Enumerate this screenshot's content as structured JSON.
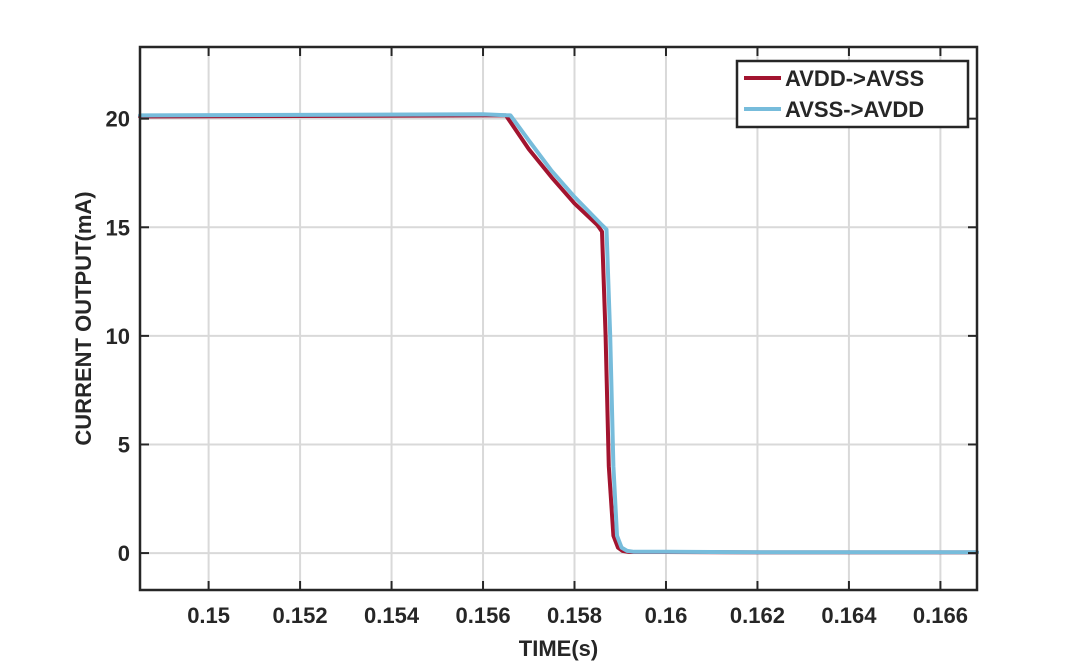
{
  "chart_data": {
    "type": "line",
    "title": "",
    "xlabel": "TIME(s)",
    "ylabel": "CURRENT OUTPUT(mA)",
    "xlim": [
      0.1485,
      0.1668
    ],
    "ylim": [
      -1.7,
      23.3
    ],
    "xticks": [
      0.15,
      0.152,
      0.154,
      0.156,
      0.158,
      0.16,
      0.162,
      0.164,
      0.166
    ],
    "xtick_labels": [
      "0.15",
      "0.152",
      "0.154",
      "0.156",
      "0.158",
      "0.16",
      "0.162",
      "0.164",
      "0.166"
    ],
    "yticks": [
      0,
      5,
      10,
      15,
      20
    ],
    "ytick_labels": [
      "0",
      "5",
      "10",
      "15",
      "20"
    ],
    "grid": true,
    "legend_position": "top-right",
    "series": [
      {
        "name": "AVDD->AVSS",
        "color": "#A2142F",
        "x": [
          0.1485,
          0.156,
          0.1565,
          0.157,
          0.1575,
          0.158,
          0.1585,
          0.1586,
          0.15868,
          0.15875,
          0.15885,
          0.15895,
          0.15905,
          0.1592,
          0.16,
          0.162,
          0.1668
        ],
        "y": [
          20.1,
          20.15,
          20.15,
          18.6,
          17.3,
          16.1,
          15.1,
          14.8,
          10.0,
          4.0,
          0.8,
          0.25,
          0.1,
          0.05,
          0.05,
          0.03,
          0.03
        ]
      },
      {
        "name": "AVSS->AVDD",
        "color": "#77BCDB",
        "x": [
          0.1485,
          0.156,
          0.1566,
          0.157,
          0.1575,
          0.158,
          0.1586,
          0.1587,
          0.15878,
          0.15885,
          0.15893,
          0.15903,
          0.15915,
          0.1593,
          0.16,
          0.162,
          0.1668
        ],
        "y": [
          20.15,
          20.2,
          20.15,
          19.0,
          17.6,
          16.4,
          15.1,
          14.9,
          10.0,
          4.0,
          0.8,
          0.25,
          0.1,
          0.06,
          0.06,
          0.04,
          0.04
        ]
      }
    ]
  }
}
